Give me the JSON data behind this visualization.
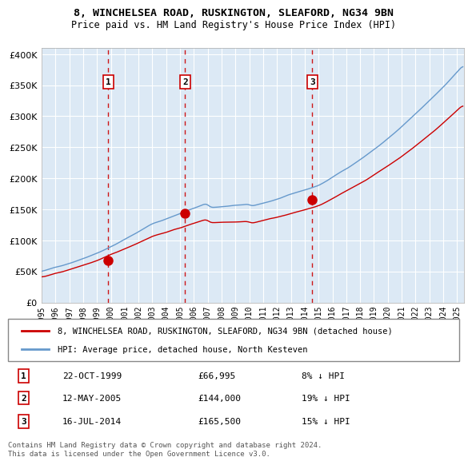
{
  "title_line1": "8, WINCHELSEA ROAD, RUSKINGTON, SLEAFORD, NG34 9BN",
  "title_line2": "Price paid vs. HM Land Registry's House Price Index (HPI)",
  "bg_color": "#dce9f5",
  "plot_bg_color": "#dce9f5",
  "grid_color": "#ffffff",
  "hpi_color": "#6699cc",
  "price_color": "#cc0000",
  "sale_marker_color": "#cc0000",
  "vline_color": "#cc0000",
  "sales": [
    {
      "date_year": 1999.81,
      "price": 66995,
      "label": "1",
      "date_str": "22-OCT-1999",
      "pct": "8%"
    },
    {
      "date_year": 2005.36,
      "price": 144000,
      "label": "2",
      "date_str": "12-MAY-2005",
      "pct": "19%"
    },
    {
      "date_year": 2014.54,
      "price": 165500,
      "label": "3",
      "date_str": "16-JUL-2014",
      "pct": "15%"
    }
  ],
  "ylabel_ticks": [
    "£0",
    "£50K",
    "£100K",
    "£150K",
    "£200K",
    "£250K",
    "£300K",
    "£350K",
    "£400K"
  ],
  "ytick_values": [
    0,
    50000,
    100000,
    150000,
    200000,
    250000,
    300000,
    350000,
    400000
  ],
  "xmin": 1995,
  "xmax": 2025.5,
  "ymin": 0,
  "ymax": 410000,
  "legend_line1": "8, WINCHELSEA ROAD, RUSKINGTON, SLEAFORD, NG34 9BN (detached house)",
  "legend_line2": "HPI: Average price, detached house, North Kesteven",
  "footnote": "Contains HM Land Registry data © Crown copyright and database right 2024.\nThis data is licensed under the Open Government Licence v3.0."
}
